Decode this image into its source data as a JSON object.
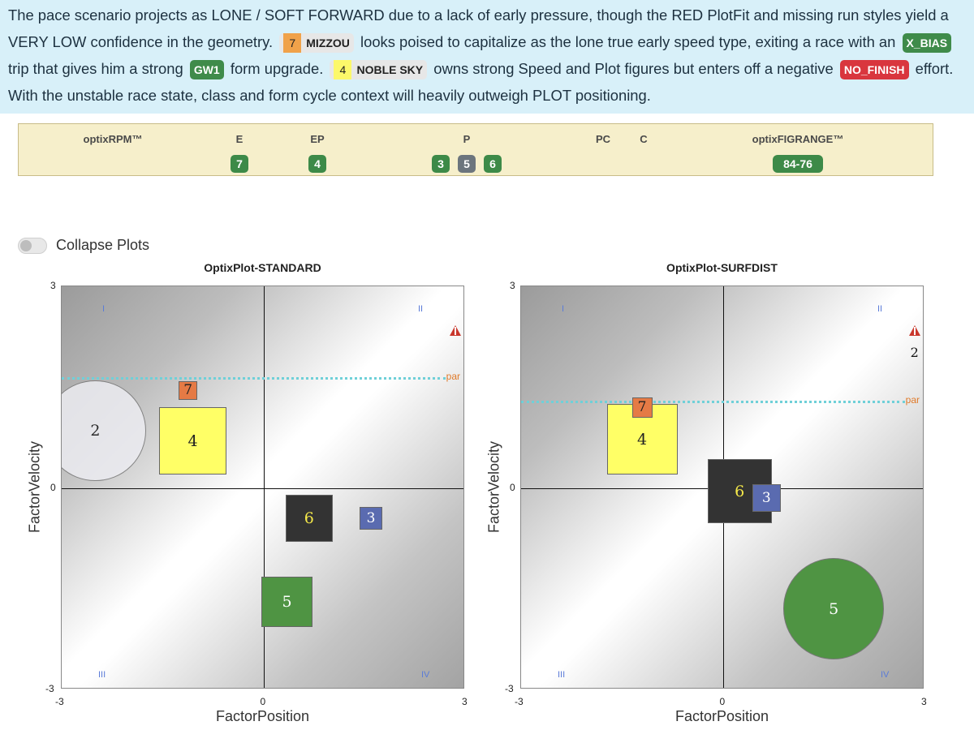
{
  "analysis": {
    "t1": "The pace scenario projects as LONE / SOFT FORWARD due to a lack of early pressure, though the RED PlotFit and missing run styles yield a VERY LOW confidence in the geometry.",
    "horse1_num": "7",
    "horse1_name": "MIZZOU",
    "t2": "looks poised to capitalize as the lone true early speed type, exiting a race with an",
    "tag1": "X_BIAS",
    "t3": "trip that gives him a strong",
    "tag2": "GW1",
    "t4": "form upgrade.",
    "horse2_num": "4",
    "horse2_name": "NOBLE SKY",
    "t5": "owns strong Speed and Plot figures but enters off a negative",
    "tag3": "NO_FINISH",
    "t6": "effort. With the unstable race state, class and form cycle context will heavily outweigh PLOT positioning."
  },
  "pace": {
    "rpm_label": "optixRPM™",
    "columns": [
      {
        "label": "E",
        "badges": [
          {
            "text": "7",
            "color": "#3d8a48"
          }
        ]
      },
      {
        "label": "EP",
        "badges": [
          {
            "text": "4",
            "color": "#3d8a48"
          }
        ]
      },
      {
        "label": "P",
        "badges": [
          {
            "text": "3",
            "color": "#3d8a48"
          },
          {
            "text": "5",
            "color": "#6c757d"
          },
          {
            "text": "6",
            "color": "#3d8a48"
          }
        ]
      },
      {
        "label": "PC",
        "badges": []
      },
      {
        "label": "C",
        "badges": []
      }
    ],
    "figrange_label": "optixFIGRANGE™",
    "figrange_value": "84-76"
  },
  "toggle": {
    "label": "Collapse Plots",
    "on": false
  },
  "plots": [
    {
      "title": "OptixPlot-STANDARD",
      "xlabel": "FactorPosition",
      "ylabel": "FactorVelocity",
      "xlim": [
        -3,
        3
      ],
      "ylim": [
        -3,
        3
      ],
      "xticks": [
        "-3",
        "0",
        "3"
      ],
      "yticks": [
        "3",
        "0",
        "-3"
      ],
      "par": 1.65,
      "par_label": "par",
      "quadrants": [
        "I",
        "II",
        "III",
        "IV"
      ],
      "marks": [
        {
          "label": "2",
          "shape": "circle",
          "x": -2.5,
          "y": 0.85,
          "size": 1.5,
          "fill": "#ececf1",
          "text": "#111",
          "opacity": 0.85
        },
        {
          "label": "4",
          "shape": "square",
          "x": -1.05,
          "y": 0.7,
          "size": 1.0,
          "fill": "#ffff66",
          "text": "#222"
        },
        {
          "label": "7",
          "shape": "square",
          "x": -1.12,
          "y": 1.45,
          "size": 0.28,
          "fill": "#e57a45",
          "text": "#222"
        },
        {
          "label": "6",
          "shape": "square",
          "x": 0.68,
          "y": -0.45,
          "size": 0.7,
          "fill": "#333333",
          "text": "#f5e94a"
        },
        {
          "label": "3",
          "shape": "square",
          "x": 1.6,
          "y": -0.45,
          "size": 0.34,
          "fill": "#5a6bb0",
          "text": "#ffffff"
        },
        {
          "label": "5",
          "shape": "square",
          "x": 0.35,
          "y": -1.7,
          "size": 0.75,
          "fill": "#4f9443",
          "text": "#ffffff"
        }
      ],
      "pin": {
        "x": 2.85,
        "y": 2.35
      },
      "pin_label": ""
    },
    {
      "title": "OptixPlot-SURFDIST",
      "xlabel": "FactorPosition",
      "ylabel": "FactorVelocity",
      "xlim": [
        -3,
        3
      ],
      "ylim": [
        -3,
        3
      ],
      "xticks": [
        "-3",
        "0",
        "3"
      ],
      "yticks": [
        "3",
        "0",
        "-3"
      ],
      "par": 1.3,
      "par_label": "par",
      "quadrants": [
        "I",
        "II",
        "III",
        "IV"
      ],
      "marks": [
        {
          "label": "4",
          "shape": "square",
          "x": -1.2,
          "y": 0.72,
          "size": 1.05,
          "fill": "#ffff66",
          "text": "#222"
        },
        {
          "label": "7",
          "shape": "square",
          "x": -1.2,
          "y": 1.2,
          "size": 0.3,
          "fill": "#e57a45",
          "text": "#222"
        },
        {
          "label": "6",
          "shape": "square",
          "x": 0.25,
          "y": -0.05,
          "size": 0.95,
          "fill": "#333333",
          "text": "#f5e94a"
        },
        {
          "label": "3",
          "shape": "square",
          "x": 0.65,
          "y": -0.15,
          "size": 0.42,
          "fill": "#5a6bb0",
          "text": "#ffffff"
        },
        {
          "label": "5",
          "shape": "circle",
          "x": 1.65,
          "y": -1.8,
          "size": 1.5,
          "fill": "#4f9443",
          "text": "#ffffff",
          "opacity": 1
        }
      ],
      "pin": {
        "x": 2.85,
        "y": 2.35
      },
      "pin_label": "2"
    }
  ]
}
